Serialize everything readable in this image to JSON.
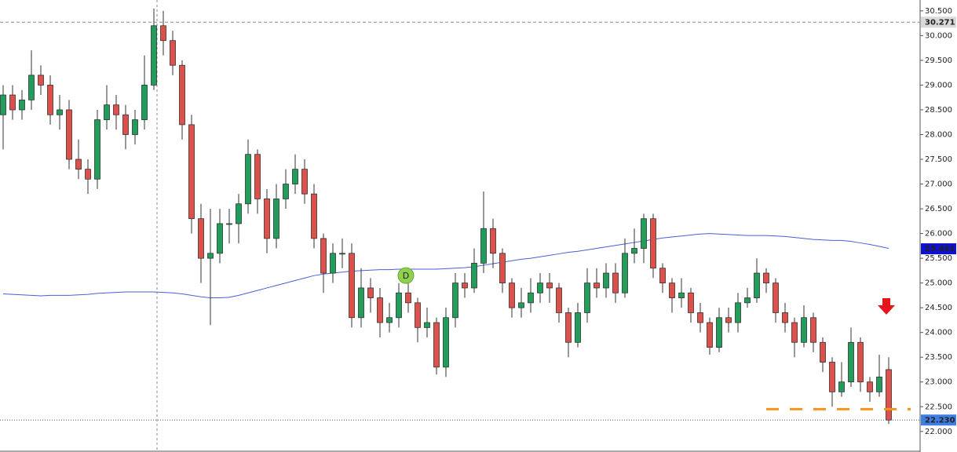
{
  "chart_data": {
    "type": "candlestick",
    "open": [
      28.4,
      28.8,
      28.5,
      28.7,
      29.2,
      29.0,
      28.4,
      28.5,
      27.5,
      27.3,
      27.1,
      28.3,
      28.6,
      28.4,
      28.0,
      28.3,
      29.0,
      30.2,
      29.9,
      29.4,
      28.2,
      26.3,
      25.5,
      25.6,
      26.2,
      26.2,
      26.6,
      27.6,
      26.7,
      25.9,
      26.7,
      27.0,
      27.3,
      26.8,
      25.9,
      25.2,
      25.6,
      25.6,
      24.3,
      24.9,
      24.7,
      24.2,
      24.3,
      24.8,
      24.6,
      24.1,
      24.2,
      23.3,
      24.3,
      25.0,
      24.9,
      25.4,
      26.1,
      25.6,
      25.0,
      24.5,
      24.6,
      24.8,
      25.0,
      24.9,
      24.4,
      23.8,
      24.4,
      25.0,
      24.9,
      25.2,
      24.8,
      25.6,
      25.7,
      26.3,
      25.3,
      25.0,
      24.7,
      24.8,
      24.4,
      24.2,
      23.7,
      24.3,
      24.2,
      24.6,
      24.7,
      25.2,
      25.0,
      24.4,
      24.2,
      23.8,
      24.3,
      23.8,
      23.4,
      22.8,
      23.0,
      23.8,
      23.0,
      22.8,
      23.25
    ],
    "high": [
      29.0,
      29.0,
      28.9,
      29.7,
      29.4,
      29.2,
      28.8,
      28.7,
      27.9,
      27.5,
      28.5,
      29.0,
      28.8,
      28.6,
      28.5,
      29.6,
      30.55,
      30.5,
      30.1,
      29.5,
      28.4,
      26.6,
      26.5,
      26.5,
      26.5,
      26.8,
      27.9,
      27.7,
      26.9,
      27.0,
      27.3,
      27.6,
      27.5,
      27.0,
      26.0,
      25.8,
      25.9,
      25.8,
      25.3,
      25.1,
      24.9,
      24.6,
      25.0,
      25.0,
      24.7,
      24.5,
      24.3,
      24.5,
      25.2,
      25.2,
      25.7,
      26.85,
      26.3,
      25.7,
      25.1,
      24.9,
      25.1,
      25.2,
      25.2,
      25.0,
      24.5,
      24.6,
      25.3,
      25.3,
      25.4,
      25.4,
      25.9,
      26.1,
      26.4,
      26.4,
      25.4,
      25.1,
      25.1,
      24.9,
      24.6,
      24.3,
      24.5,
      24.5,
      24.8,
      24.9,
      25.5,
      25.3,
      25.1,
      24.6,
      24.3,
      24.55,
      24.4,
      23.9,
      23.5,
      23.4,
      24.1,
      23.9,
      23.1,
      23.55,
      23.5
    ],
    "low": [
      27.7,
      28.3,
      28.3,
      28.5,
      28.8,
      28.2,
      28.1,
      27.3,
      27.1,
      26.8,
      26.9,
      28.1,
      28.1,
      27.7,
      27.8,
      28.1,
      28.9,
      29.6,
      29.2,
      27.9,
      26.0,
      25.0,
      24.15,
      25.4,
      25.8,
      25.8,
      26.4,
      26.4,
      25.6,
      25.7,
      26.5,
      26.8,
      26.6,
      25.7,
      24.8,
      25.0,
      25.3,
      24.1,
      24.1,
      24.4,
      23.9,
      24.0,
      24.1,
      24.4,
      23.8,
      23.9,
      23.15,
      23.1,
      24.1,
      24.7,
      24.8,
      25.2,
      25.3,
      24.8,
      24.3,
      24.3,
      24.4,
      24.6,
      24.6,
      24.2,
      23.5,
      23.7,
      24.2,
      24.7,
      24.7,
      24.6,
      24.7,
      25.4,
      25.4,
      25.1,
      24.8,
      24.4,
      24.5,
      24.2,
      24.0,
      23.55,
      23.6,
      24.0,
      24.0,
      24.5,
      24.6,
      24.8,
      24.2,
      24.0,
      23.5,
      23.7,
      23.6,
      23.2,
      22.5,
      22.7,
      22.9,
      22.8,
      22.6,
      22.7,
      22.15
    ],
    "close": [
      28.8,
      28.5,
      28.7,
      29.2,
      29.0,
      28.4,
      28.5,
      27.5,
      27.3,
      27.1,
      28.3,
      28.6,
      28.4,
      28.0,
      28.3,
      29.0,
      30.2,
      29.9,
      29.4,
      28.2,
      26.3,
      25.5,
      25.6,
      26.2,
      26.2,
      26.6,
      27.6,
      26.7,
      25.9,
      26.7,
      27.0,
      27.3,
      26.8,
      25.9,
      25.2,
      25.6,
      25.6,
      24.3,
      24.9,
      24.7,
      24.2,
      24.3,
      24.8,
      24.6,
      24.1,
      24.2,
      23.3,
      24.3,
      25.0,
      24.9,
      25.4,
      26.1,
      25.6,
      25.0,
      24.5,
      24.6,
      24.8,
      25.0,
      24.9,
      24.4,
      23.8,
      24.4,
      25.0,
      24.9,
      25.2,
      24.8,
      25.6,
      25.7,
      26.3,
      25.3,
      25.0,
      24.7,
      24.8,
      24.4,
      24.2,
      23.7,
      24.3,
      24.2,
      24.6,
      24.7,
      25.2,
      25.0,
      24.4,
      24.2,
      23.8,
      24.3,
      23.8,
      23.4,
      22.8,
      23.0,
      23.8,
      23.0,
      22.8,
      23.1,
      22.23
    ],
    "up_color": "#1e9e5a",
    "down_color": "#e0504a",
    "moving_average": {
      "color": "#4a5fd6",
      "values": [
        24.78,
        24.77,
        24.76,
        24.75,
        24.74,
        24.75,
        24.75,
        24.75,
        24.76,
        24.77,
        24.79,
        24.8,
        24.81,
        24.82,
        24.82,
        24.82,
        24.82,
        24.81,
        24.8,
        24.78,
        24.75,
        24.72,
        24.7,
        24.7,
        24.71,
        24.75,
        24.8,
        24.85,
        24.9,
        24.95,
        25.0,
        25.05,
        25.1,
        25.15,
        25.18,
        25.2,
        25.22,
        25.24,
        25.25,
        25.26,
        25.27,
        25.27,
        25.28,
        25.28,
        25.28,
        25.28,
        25.28,
        25.29,
        25.3,
        25.31,
        25.33,
        25.36,
        25.39,
        25.42,
        25.45,
        25.48,
        25.5,
        25.53,
        25.56,
        25.59,
        25.62,
        25.64,
        25.67,
        25.7,
        25.73,
        25.76,
        25.79,
        25.82,
        25.85,
        25.88,
        25.91,
        25.93,
        25.95,
        25.97,
        25.99,
        26.0,
        25.99,
        25.98,
        25.97,
        25.96,
        25.96,
        25.96,
        25.95,
        25.94,
        25.92,
        25.9,
        25.88,
        25.87,
        25.86,
        25.86,
        25.84,
        25.81,
        25.78,
        25.74,
        25.7
      ]
    },
    "ylim": [
      21.6,
      30.72
    ],
    "yticks": [
      {
        "value": 22.0,
        "label": "22.000"
      },
      {
        "value": 22.5,
        "label": "22.500"
      },
      {
        "value": 23.0,
        "label": "23.000"
      },
      {
        "value": 23.5,
        "label": "23.500"
      },
      {
        "value": 24.0,
        "label": "24.000"
      },
      {
        "value": 24.5,
        "label": "24.500"
      },
      {
        "value": 25.0,
        "label": "25.000"
      },
      {
        "value": 25.5,
        "label": "25.500"
      },
      {
        "value": 26.0,
        "label": "26.000"
      },
      {
        "value": 26.5,
        "label": "26.500"
      },
      {
        "value": 27.0,
        "label": "27.000"
      },
      {
        "value": 27.5,
        "label": "27.500"
      },
      {
        "value": 28.0,
        "label": "28.000"
      },
      {
        "value": 28.5,
        "label": "28.500"
      },
      {
        "value": 29.0,
        "label": "29.000"
      },
      {
        "value": 29.5,
        "label": "29.500"
      },
      {
        "value": 30.0,
        "label": "30.000"
      },
      {
        "value": 30.5,
        "label": "30.500"
      }
    ],
    "price_labels": [
      {
        "value": 30.271,
        "label": "30.271",
        "color": "#d9d9d9",
        "text_color": "#000000",
        "line_color": "#888888"
      },
      {
        "value": 25.691,
        "label": "25.691",
        "color": "#1010d0",
        "text_color": "#ffffff"
      },
      {
        "value": 22.23,
        "label": "22.230",
        "color": "#3f7de0",
        "text_color": "#ffffff",
        "line_color": "#3a5a9a"
      }
    ],
    "support": {
      "value": 22.45,
      "from_index": 81,
      "color": "#f7931e"
    },
    "marker": {
      "index": 43,
      "value": 25.15,
      "label": "D",
      "color": "#8fd14f"
    },
    "grid": false
  }
}
